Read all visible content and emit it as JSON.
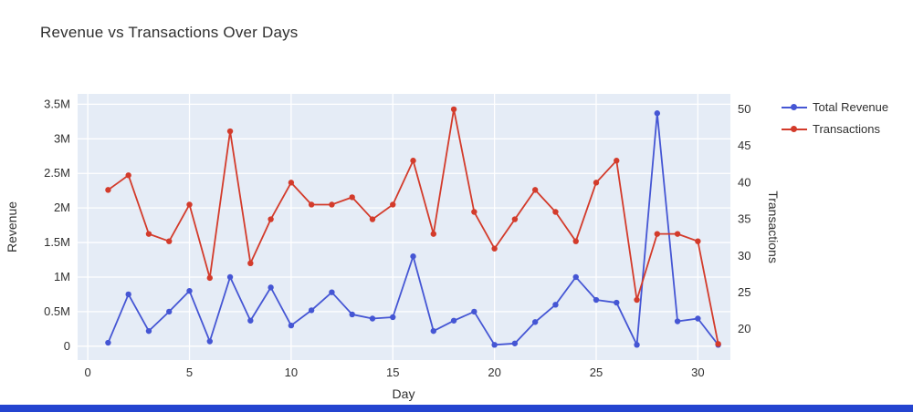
{
  "page": {
    "background": "#ffffff"
  },
  "window": {
    "bottom_bar_color": "#2444d0"
  },
  "chart_data": {
    "type": "line",
    "title": "Revenue vs Transactions Over Days",
    "xlabel": "Day",
    "ylabel_left": "Revenue",
    "ylabel_right": "Transactions",
    "plot_bg": "#e5ecf6",
    "grid": true,
    "legend_position": "right-outside-top",
    "x": [
      1,
      2,
      3,
      4,
      5,
      6,
      7,
      8,
      9,
      10,
      11,
      12,
      13,
      14,
      15,
      16,
      17,
      18,
      19,
      20,
      21,
      22,
      23,
      24,
      25,
      26,
      27,
      28,
      29,
      30,
      31
    ],
    "series": [
      {
        "name": "Total Revenue",
        "axis": "left",
        "color": "#4556d4",
        "marker": "circle",
        "values": [
          50000,
          750000,
          220000,
          500000,
          800000,
          70000,
          1000000,
          370000,
          850000,
          300000,
          520000,
          780000,
          460000,
          400000,
          420000,
          1300000,
          220000,
          370000,
          500000,
          20000,
          40000,
          350000,
          600000,
          1000000,
          670000,
          630000,
          20000,
          3370000,
          360000,
          400000,
          20000
        ]
      },
      {
        "name": "Transactions",
        "axis": "right",
        "color": "#d33b2b",
        "marker": "circle",
        "values": [
          39,
          41,
          33,
          32,
          37,
          27,
          47,
          29,
          35,
          40,
          37,
          37,
          38,
          35,
          37,
          43,
          33,
          50,
          36,
          31,
          35,
          39,
          36,
          32,
          40,
          43,
          24,
          33,
          33,
          32,
          18
        ]
      }
    ],
    "xaxis": {
      "range": [
        -0.5,
        31.6
      ],
      "ticks": [
        {
          "v": 0,
          "label": "0"
        },
        {
          "v": 5,
          "label": "5"
        },
        {
          "v": 10,
          "label": "10"
        },
        {
          "v": 15,
          "label": "15"
        },
        {
          "v": 20,
          "label": "20"
        },
        {
          "v": 25,
          "label": "25"
        },
        {
          "v": 30,
          "label": "30"
        }
      ]
    },
    "yaxis_left": {
      "range": [
        -200000,
        3650000
      ],
      "ticks": [
        {
          "v": 0,
          "label": "0"
        },
        {
          "v": 500000,
          "label": "0.5M"
        },
        {
          "v": 1000000,
          "label": "1M"
        },
        {
          "v": 1500000,
          "label": "1.5M"
        },
        {
          "v": 2000000,
          "label": "2M"
        },
        {
          "v": 2500000,
          "label": "2.5M"
        },
        {
          "v": 3000000,
          "label": "3M"
        },
        {
          "v": 3500000,
          "label": "3.5M"
        }
      ]
    },
    "yaxis_right": {
      "range": [
        15.8,
        52.1
      ],
      "ticks": [
        {
          "v": 20,
          "label": "20"
        },
        {
          "v": 25,
          "label": "25"
        },
        {
          "v": 30,
          "label": "30"
        },
        {
          "v": 35,
          "label": "35"
        },
        {
          "v": 40,
          "label": "40"
        },
        {
          "v": 45,
          "label": "45"
        },
        {
          "v": 50,
          "label": "50"
        }
      ]
    }
  }
}
